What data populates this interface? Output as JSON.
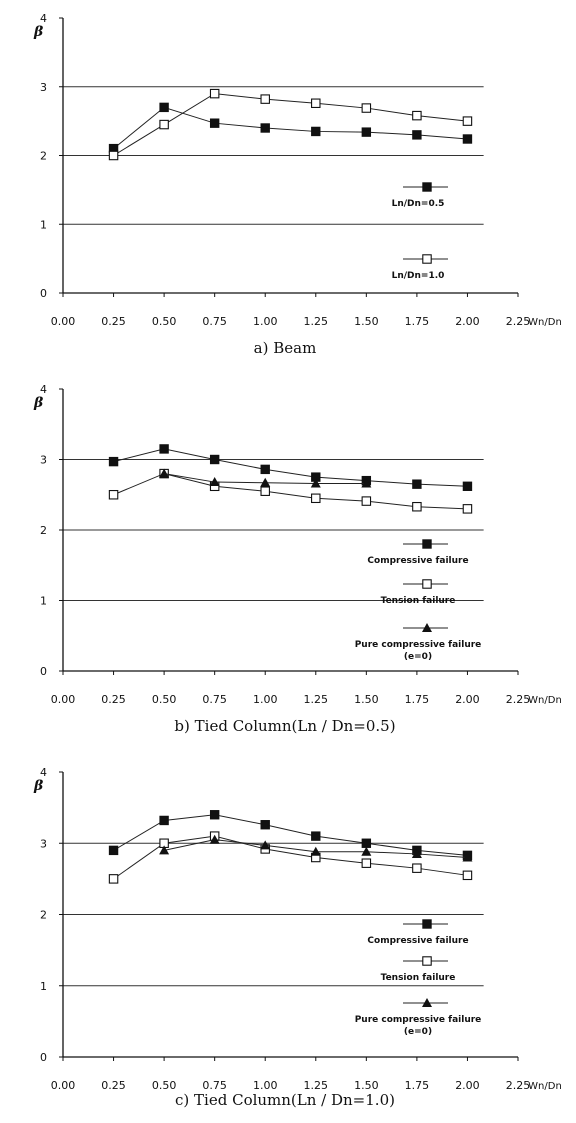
{
  "chart_data": [
    {
      "type": "line",
      "caption": "a) Beam",
      "ylabel": "β",
      "xlabel": "Wn/Dn",
      "xlim": [
        0,
        2.25
      ],
      "ylim": [
        0,
        4
      ],
      "x_ticks": [
        "0.00",
        "0.25",
        "0.50",
        "0.75",
        "1.00",
        "1.25",
        "1.50",
        "1.75",
        "2.00",
        "2.25"
      ],
      "y_ticks": [
        "0",
        "1",
        "2",
        "3",
        "4"
      ],
      "grid_y": [
        1,
        2,
        3
      ],
      "legend_position": "bottom-right",
      "series": [
        {
          "name": "Ln/Dn=0.5",
          "marker": "filled-square",
          "x": [
            0.25,
            0.5,
            0.75,
            1.0,
            1.25,
            1.5,
            1.75,
            2.0
          ],
          "y": [
            2.1,
            2.7,
            2.47,
            2.4,
            2.35,
            2.34,
            2.3,
            2.24
          ]
        },
        {
          "name": "Ln/Dn=1.0",
          "marker": "open-square",
          "x": [
            0.25,
            0.5,
            0.75,
            1.0,
            1.25,
            1.5,
            1.75,
            2.0
          ],
          "y": [
            2.0,
            2.45,
            2.9,
            2.82,
            2.76,
            2.69,
            2.58,
            2.5
          ]
        }
      ]
    },
    {
      "type": "line",
      "caption": "b) Tied Column(Ln / Dn=0.5)",
      "ylabel": "β",
      "xlabel": "Wn/Dn",
      "xlim": [
        0,
        2.25
      ],
      "ylim": [
        0,
        4
      ],
      "x_ticks": [
        "0.00",
        "0.25",
        "0.50",
        "0.75",
        "1.00",
        "1.25",
        "1.50",
        "1.75",
        "2.00",
        "2.25"
      ],
      "y_ticks": [
        "0",
        "1",
        "2",
        "3",
        "4"
      ],
      "grid_y": [
        1,
        2,
        3
      ],
      "legend_position": "bottom-right",
      "series": [
        {
          "name": "Compressive failure",
          "marker": "filled-square",
          "x": [
            0.25,
            0.5,
            0.75,
            1.0,
            1.25,
            1.5,
            1.75,
            2.0
          ],
          "y": [
            2.97,
            3.15,
            3.0,
            2.86,
            2.75,
            2.7,
            2.65,
            2.62
          ]
        },
        {
          "name": "Tension failure",
          "marker": "open-square",
          "x": [
            0.25,
            0.5,
            0.75,
            1.0,
            1.25,
            1.5,
            1.75,
            2.0
          ],
          "y": [
            2.5,
            2.8,
            2.62,
            2.55,
            2.45,
            2.41,
            2.33,
            2.3
          ]
        },
        {
          "name": "Pure compressive failure",
          "name2": "(e=0)",
          "marker": "filled-triangle",
          "x": [
            0.5,
            0.75,
            1.0,
            1.25,
            1.5
          ],
          "y": [
            2.8,
            2.68,
            2.67,
            2.66,
            2.66
          ]
        }
      ]
    },
    {
      "type": "line",
      "caption": "c) Tied Column(Ln / Dn=1.0)",
      "ylabel": "β",
      "xlabel": "Wn/Dn",
      "xlim": [
        0,
        2.25
      ],
      "ylim": [
        0,
        4
      ],
      "x_ticks": [
        "0.00",
        "0.25",
        "0.50",
        "0.75",
        "1.00",
        "1.25",
        "1.50",
        "1.75",
        "2.00",
        "2.25"
      ],
      "y_ticks": [
        "0",
        "1",
        "2",
        "3",
        "4"
      ],
      "grid_y": [
        1,
        2,
        3
      ],
      "legend_position": "bottom-right",
      "series": [
        {
          "name": "Compressive failure",
          "marker": "filled-square",
          "x": [
            0.25,
            0.5,
            0.75,
            1.0,
            1.25,
            1.5,
            1.75,
            2.0
          ],
          "y": [
            2.9,
            3.32,
            3.4,
            3.26,
            3.1,
            3.0,
            2.9,
            2.83
          ]
        },
        {
          "name": "Tension failure",
          "marker": "open-square",
          "x": [
            0.25,
            0.5,
            0.75,
            1.0,
            1.25,
            1.5,
            1.75,
            2.0
          ],
          "y": [
            2.5,
            3.0,
            3.1,
            2.92,
            2.8,
            2.72,
            2.65,
            2.55
          ]
        },
        {
          "name": "Pure compressive failure",
          "name2": "(e=0)",
          "marker": "filled-triangle",
          "x": [
            0.5,
            0.75,
            1.0,
            1.25,
            1.5,
            1.75,
            2.0
          ],
          "y": [
            2.9,
            3.05,
            2.97,
            2.88,
            2.88,
            2.85,
            2.8
          ]
        }
      ]
    }
  ]
}
